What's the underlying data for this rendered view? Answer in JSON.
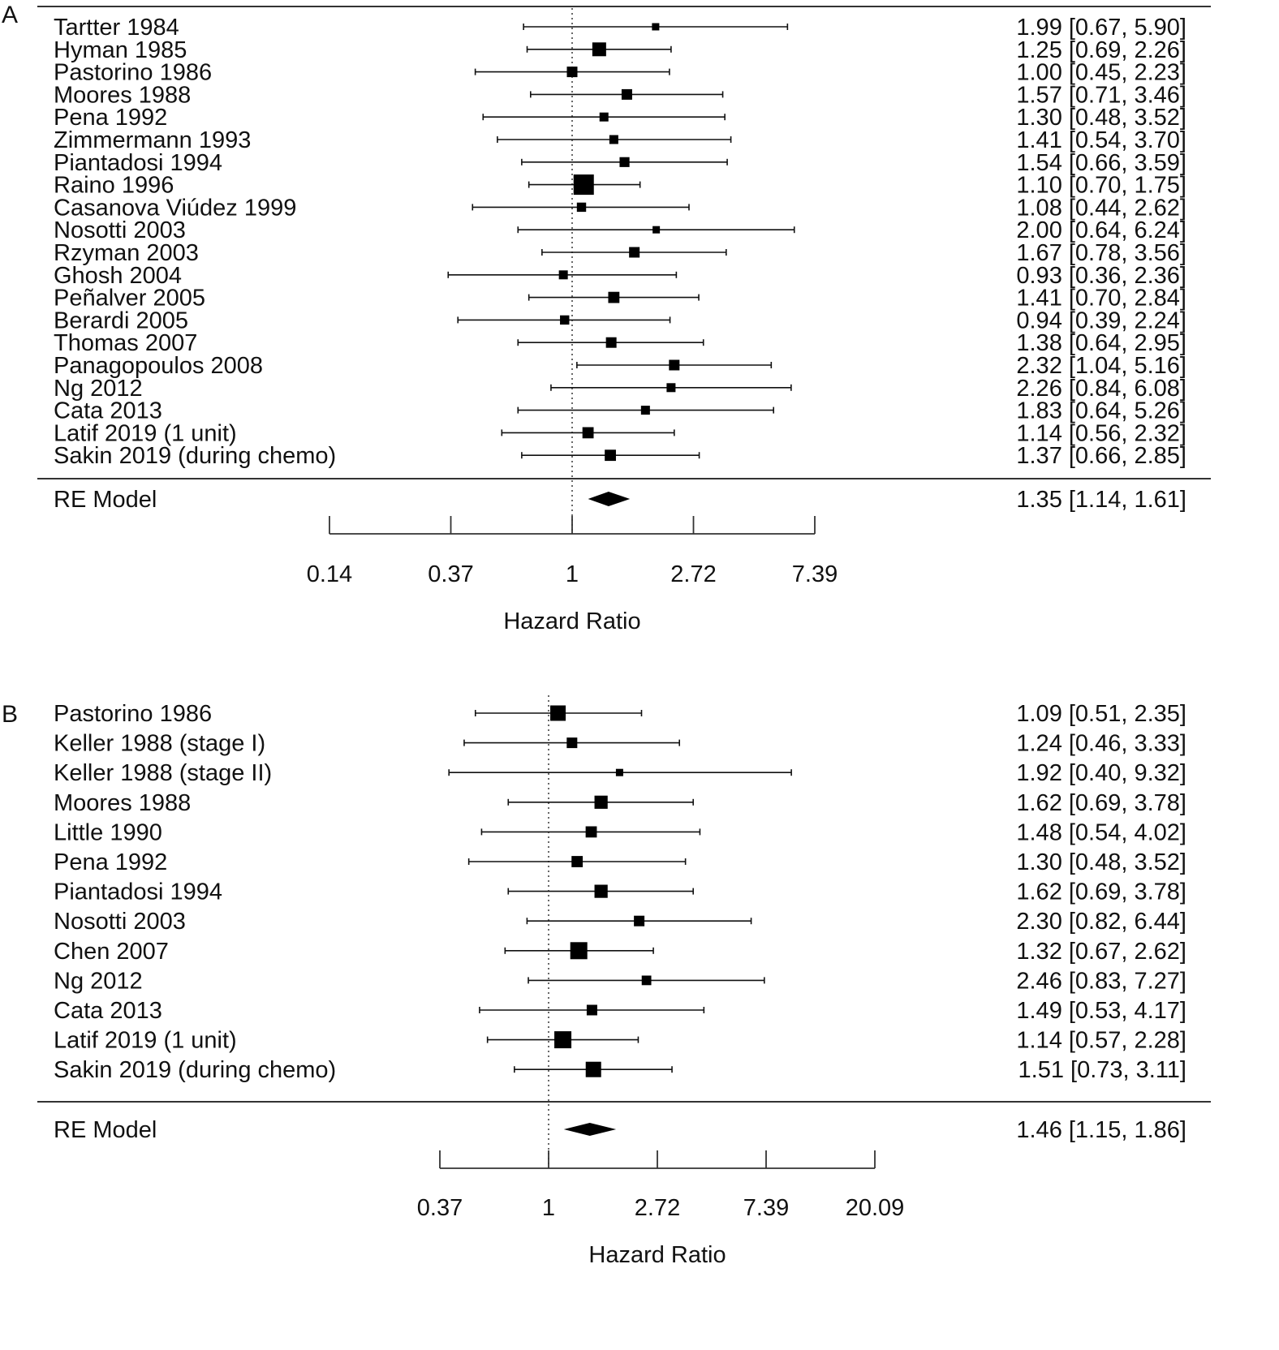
{
  "chart_data": [
    {
      "type": "forest",
      "panel_label": "A",
      "xlabel": "Hazard Ratio",
      "x_scale": "log",
      "xlim": [
        0.14,
        7.39
      ],
      "reference_line": 1,
      "tick_labels": [
        "0.14",
        "0.37",
        "1",
        "2.72",
        "7.39"
      ],
      "tick_values": [
        0.1353,
        0.3679,
        1,
        2.7183,
        7.3891
      ],
      "studies": [
        {
          "label": "Tartter 1984",
          "hr": 1.99,
          "lower": 0.67,
          "upper": 5.9,
          "text": "1.99 [0.67, 5.90]",
          "weight": 1
        },
        {
          "label": "Hyman 1985",
          "hr": 1.25,
          "lower": 0.69,
          "upper": 2.26,
          "text": "1.25 [0.69, 2.26]",
          "weight": 3
        },
        {
          "label": "Pastorino 1986",
          "hr": 1.0,
          "lower": 0.45,
          "upper": 2.23,
          "text": "1.00 [0.45, 2.23]",
          "weight": 2
        },
        {
          "label": "Moores 1988",
          "hr": 1.57,
          "lower": 0.71,
          "upper": 3.46,
          "text": "1.57 [0.71, 3.46]",
          "weight": 2
        },
        {
          "label": "Pena 1992",
          "hr": 1.3,
          "lower": 0.48,
          "upper": 3.52,
          "text": "1.30 [0.48, 3.52]",
          "weight": 1.5
        },
        {
          "label": "Zimmermann 1993",
          "hr": 1.41,
          "lower": 0.54,
          "upper": 3.7,
          "text": "1.41 [0.54, 3.70]",
          "weight": 1.5
        },
        {
          "label": "Piantadosi 1994",
          "hr": 1.54,
          "lower": 0.66,
          "upper": 3.59,
          "text": "1.54 [0.66, 3.59]",
          "weight": 1.8
        },
        {
          "label": "Raino 1996",
          "hr": 1.1,
          "lower": 0.7,
          "upper": 1.75,
          "text": "1.10 [0.70, 1.75]",
          "weight": 5
        },
        {
          "label": "Casanova Viúdez 1999",
          "hr": 1.08,
          "lower": 0.44,
          "upper": 2.62,
          "text": "1.08 [0.44, 2.62]",
          "weight": 1.6
        },
        {
          "label": "Nosotti 2003",
          "hr": 2.0,
          "lower": 0.64,
          "upper": 6.24,
          "text": "2.00 [0.64, 6.24]",
          "weight": 1
        },
        {
          "label": "Rzyman 2003",
          "hr": 1.67,
          "lower": 0.78,
          "upper": 3.56,
          "text": "1.67 [0.78, 3.56]",
          "weight": 2
        },
        {
          "label": "Ghosh 2004",
          "hr": 0.93,
          "lower": 0.36,
          "upper": 2.36,
          "text": "0.93 [0.36, 2.36]",
          "weight": 1.5
        },
        {
          "label": "Peñalver 2005",
          "hr": 1.41,
          "lower": 0.7,
          "upper": 2.84,
          "text": "1.41 [0.70, 2.84]",
          "weight": 2.2
        },
        {
          "label": "Berardi 2005",
          "hr": 0.94,
          "lower": 0.39,
          "upper": 2.24,
          "text": "0.94 [0.39, 2.24]",
          "weight": 1.6
        },
        {
          "label": "Thomas 2007",
          "hr": 1.38,
          "lower": 0.64,
          "upper": 2.95,
          "text": "1.38 [0.64, 2.95]",
          "weight": 2
        },
        {
          "label": "Panagopoulos 2008",
          "hr": 2.32,
          "lower": 1.04,
          "upper": 5.16,
          "text": "2.32 [1.04, 5.16]",
          "weight": 2
        },
        {
          "label": "Ng 2012",
          "hr": 2.26,
          "lower": 0.84,
          "upper": 6.08,
          "text": "2.26 [0.84, 6.08]",
          "weight": 1.5
        },
        {
          "label": "Cata 2013",
          "hr": 1.83,
          "lower": 0.64,
          "upper": 5.26,
          "text": "1.83 [0.64, 5.26]",
          "weight": 1.5
        },
        {
          "label": "Latif 2019 (1 unit)",
          "hr": 1.14,
          "lower": 0.56,
          "upper": 2.32,
          "text": "1.14 [0.56, 2.32]",
          "weight": 2.2
        },
        {
          "label": "Sakin 2019 (during chemo)",
          "hr": 1.37,
          "lower": 0.66,
          "upper": 2.85,
          "text": "1.37 [0.66, 2.85]",
          "weight": 2.2
        }
      ],
      "summary": {
        "label": "RE Model",
        "hr": 1.35,
        "lower": 1.14,
        "upper": 1.61,
        "text": "1.35 [1.14, 1.61]"
      }
    },
    {
      "type": "forest",
      "panel_label": "B",
      "xlabel": "Hazard Ratio",
      "x_scale": "log",
      "xlim": [
        0.37,
        20.09
      ],
      "reference_line": 1,
      "tick_labels": [
        "0.37",
        "1",
        "2.72",
        "7.39",
        "20.09"
      ],
      "tick_values": [
        0.3679,
        1,
        2.7183,
        7.3891,
        20.0855
      ],
      "studies": [
        {
          "label": "Pastorino 1986",
          "hr": 1.09,
          "lower": 0.51,
          "upper": 2.35,
          "text": "1.09 [0.51, 2.35]",
          "weight": 3.5
        },
        {
          "label": "Keller 1988 (stage I)",
          "hr": 1.24,
          "lower": 0.46,
          "upper": 3.33,
          "text": "1.24 [0.46, 3.33]",
          "weight": 2
        },
        {
          "label": "Keller 1988 (stage II)",
          "hr": 1.92,
          "lower": 0.4,
          "upper": 9.32,
          "text": "1.92 [0.40, 9.32]",
          "weight": 1
        },
        {
          "label": "Moores 1988",
          "hr": 1.62,
          "lower": 0.69,
          "upper": 3.78,
          "text": "1.62 [0.69, 3.78]",
          "weight": 2.8
        },
        {
          "label": "Little 1990",
          "hr": 1.48,
          "lower": 0.54,
          "upper": 4.02,
          "text": "1.48 [0.54, 4.02]",
          "weight": 2.2
        },
        {
          "label": "Pena 1992",
          "hr": 1.3,
          "lower": 0.48,
          "upper": 3.52,
          "text": "1.30 [0.48, 3.52]",
          "weight": 2.2
        },
        {
          "label": "Piantadosi 1994",
          "hr": 1.62,
          "lower": 0.69,
          "upper": 3.78,
          "text": "1.62 [0.69, 3.78]",
          "weight": 2.8
        },
        {
          "label": "Nosotti 2003",
          "hr": 2.3,
          "lower": 0.82,
          "upper": 6.44,
          "text": "2.30 [0.82, 6.44]",
          "weight": 2
        },
        {
          "label": "Chen 2007",
          "hr": 1.32,
          "lower": 0.67,
          "upper": 2.62,
          "text": "1.32 [0.67, 2.62]",
          "weight": 4
        },
        {
          "label": "Ng 2012",
          "hr": 2.46,
          "lower": 0.83,
          "upper": 7.27,
          "text": "2.46 [0.83, 7.27]",
          "weight": 1.7
        },
        {
          "label": "Cata 2013",
          "hr": 1.49,
          "lower": 0.53,
          "upper": 4.17,
          "text": "1.49 [0.53, 4.17]",
          "weight": 2
        },
        {
          "label": "Latif 2019 (1 unit)",
          "hr": 1.14,
          "lower": 0.57,
          "upper": 2.28,
          "text": "1.14 [0.57, 2.28]",
          "weight": 4
        },
        {
          "label": "Sakin 2019 (during chemo)",
          "hr": 1.51,
          "lower": 0.73,
          "upper": 3.11,
          "text": "1.51 [0.73, 3.11]",
          "weight": 3.5
        }
      ],
      "summary": {
        "label": "RE Model",
        "hr": 1.46,
        "lower": 1.15,
        "upper": 1.86,
        "text": "1.46 [1.15, 1.86]"
      }
    }
  ]
}
